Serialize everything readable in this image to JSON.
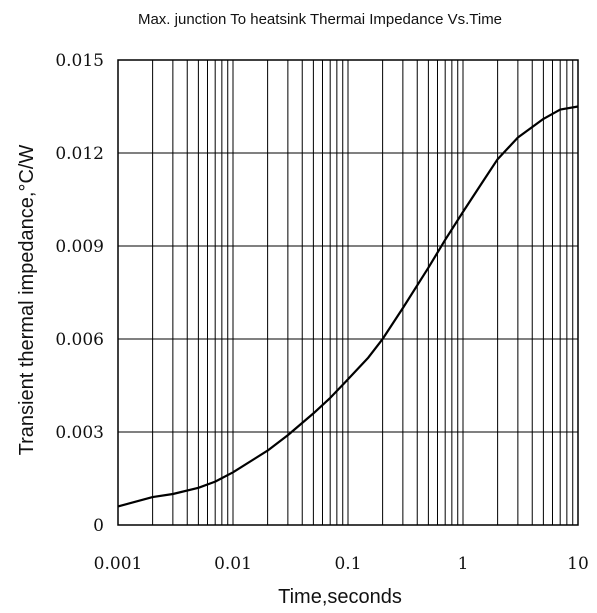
{
  "chart_data": {
    "type": "line",
    "title": "Max. junction To heatsink Thermai Impedance Vs.Time",
    "xlabel": "Time,seconds",
    "ylabel": "Transient thermal impedance,°C/W",
    "x_scale": "log",
    "xlim": [
      0.001,
      10
    ],
    "ylim": [
      0,
      0.015
    ],
    "x_ticks": [
      "0.001",
      "0.01",
      "0.1",
      "1",
      "10"
    ],
    "x_tick_values": [
      0.001,
      0.01,
      0.1,
      1,
      10
    ],
    "y_ticks": [
      "0",
      "0.003",
      "0.006",
      "0.009",
      "0.012",
      "0.015"
    ],
    "y_tick_values": [
      0,
      0.003,
      0.006,
      0.009,
      0.012,
      0.015
    ],
    "grid": true,
    "series": [
      {
        "x": [
          0.001,
          0.002,
          0.003,
          0.005,
          0.007,
          0.01,
          0.02,
          0.03,
          0.05,
          0.07,
          0.1,
          0.15,
          0.2,
          0.3,
          0.5,
          0.7,
          1,
          1.5,
          2,
          3,
          5,
          7,
          10
        ],
        "y": [
          0.0006,
          0.0009,
          0.001,
          0.0012,
          0.0014,
          0.0017,
          0.0024,
          0.0029,
          0.0036,
          0.0041,
          0.0047,
          0.0054,
          0.006,
          0.007,
          0.0083,
          0.0092,
          0.0101,
          0.0111,
          0.0118,
          0.0125,
          0.0131,
          0.0134,
          0.0135
        ]
      }
    ]
  }
}
